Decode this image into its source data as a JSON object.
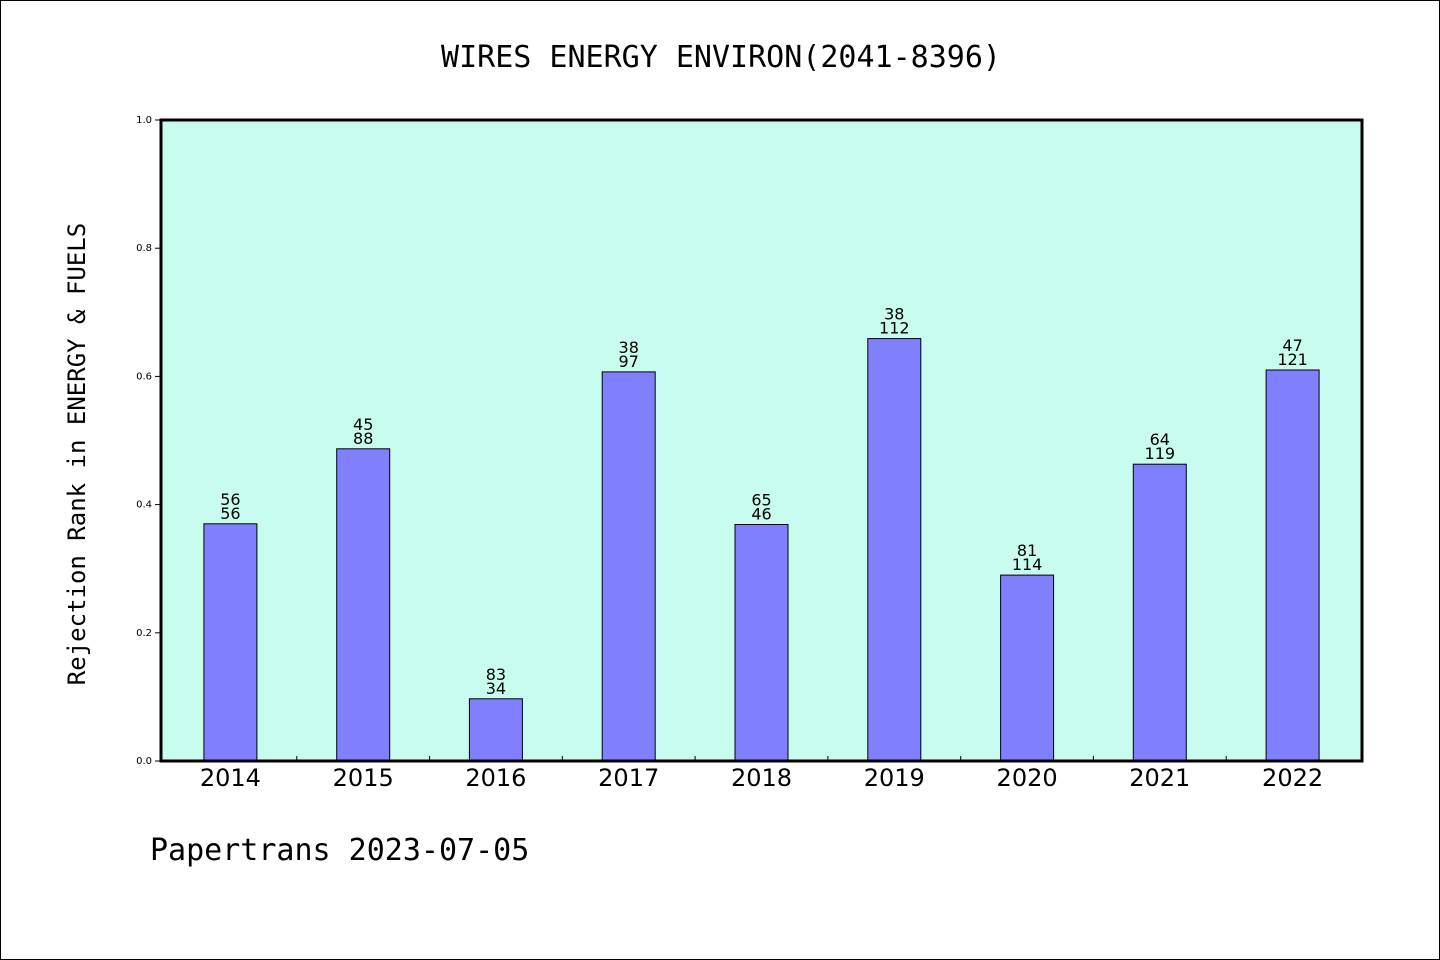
{
  "chart_data": {
    "type": "bar",
    "title": "WIRES ENERGY ENVIRON(2041-8396)",
    "xlabel": "",
    "ylabel": "Rejection Rank in ENERGY & FUELS",
    "categories": [
      "2014",
      "2015",
      "2016",
      "2017",
      "2018",
      "2019",
      "2020",
      "2021",
      "2022"
    ],
    "values": [
      0.37,
      0.487,
      0.097,
      0.607,
      0.369,
      0.659,
      0.29,
      0.463,
      0.61
    ],
    "bar_labels": [
      [
        "56",
        "56"
      ],
      [
        "45",
        "88"
      ],
      [
        "83",
        "34"
      ],
      [
        "38",
        "97"
      ],
      [
        "65",
        "46"
      ],
      [
        "38",
        "112"
      ],
      [
        "81",
        "114"
      ],
      [
        "64",
        "119"
      ],
      [
        "47",
        "121"
      ]
    ],
    "ylim": [
      0,
      1.0
    ],
    "yticks": [
      "0.0",
      "0.2",
      "0.4",
      "0.6",
      "0.8",
      "1.0"
    ],
    "grid": false,
    "colors": {
      "plot_background": "#c8fcee",
      "bar_fill": "#8080ff",
      "bar_edge": "#000000"
    }
  },
  "footer": {
    "text": "Papertrans 2023-07-05"
  }
}
